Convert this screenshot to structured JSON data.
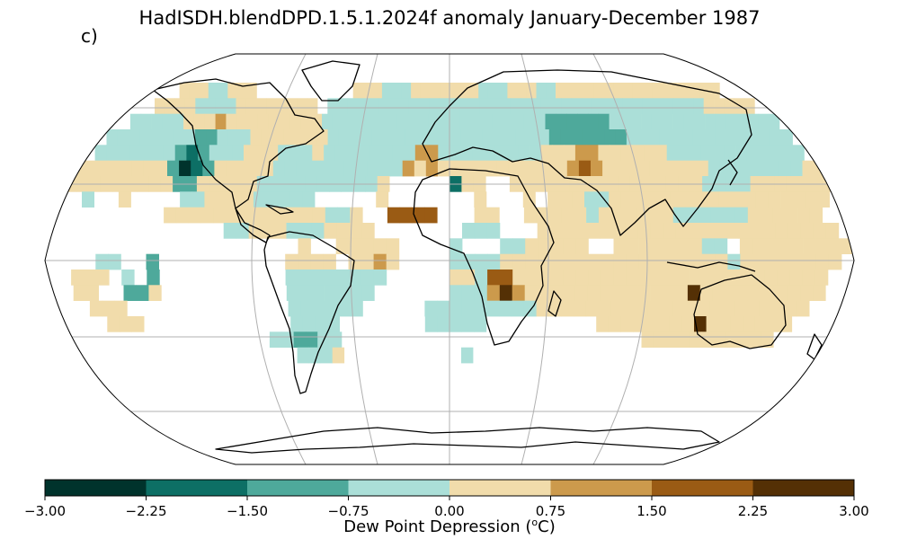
{
  "title": "HadISDH.blendDPD.1.5.1.2024f anomaly January-December 1987",
  "panel_label": "c)",
  "colorbar": {
    "label_prefix": "Dew Point Depression (",
    "label_sup": "o",
    "label_suffix": "C)",
    "ticks": [
      "−3.00",
      "−2.25",
      "−1.50",
      "−0.75",
      "0.00",
      "0.75",
      "1.50",
      "2.25",
      "3.00"
    ],
    "tick_values": [
      -3.0,
      -2.25,
      -1.5,
      -0.75,
      0.0,
      0.75,
      1.5,
      2.25,
      3.0
    ],
    "colors": [
      "#00332c",
      "#0d6f65",
      "#4ea99b",
      "#abdfd8",
      "#f1dcab",
      "#cc9a4c",
      "#9a5b14",
      "#543005"
    ]
  },
  "map": {
    "projection": "Robinson",
    "ocean_color": "#ffffff",
    "grid_color": "#b0b0b0",
    "coast_color": "#000000"
  }
}
